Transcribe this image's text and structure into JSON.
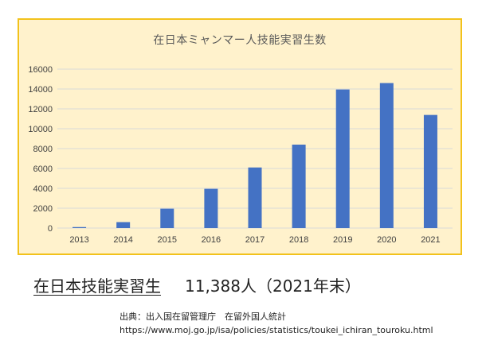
{
  "chart_data": {
    "type": "bar",
    "title": "在日本ミャンマー人技能実習生数",
    "categories": [
      "2013",
      "2014",
      "2015",
      "2016",
      "2017",
      "2018",
      "2019",
      "2020",
      "2021"
    ],
    "values": [
      100,
      600,
      1950,
      3950,
      6100,
      8400,
      13950,
      14600,
      11388
    ],
    "ylim": [
      0,
      16000
    ],
    "yticks": [
      0,
      2000,
      4000,
      6000,
      8000,
      10000,
      12000,
      14000,
      16000
    ],
    "grid": true,
    "bar_color": "#4472c4",
    "grid_color": "#d9d9d9",
    "background_color": "#fff2cc",
    "border_color": "#f2c21b"
  },
  "headline": {
    "left": "在日本技能実習生",
    "right": "11,388人（2021年末）"
  },
  "source": {
    "label": "出典：出入国在留管理庁　在留外国人統計",
    "url": "https://www.moj.go.jp/isa/policies/statistics/toukei_ichiran_touroku.html"
  }
}
